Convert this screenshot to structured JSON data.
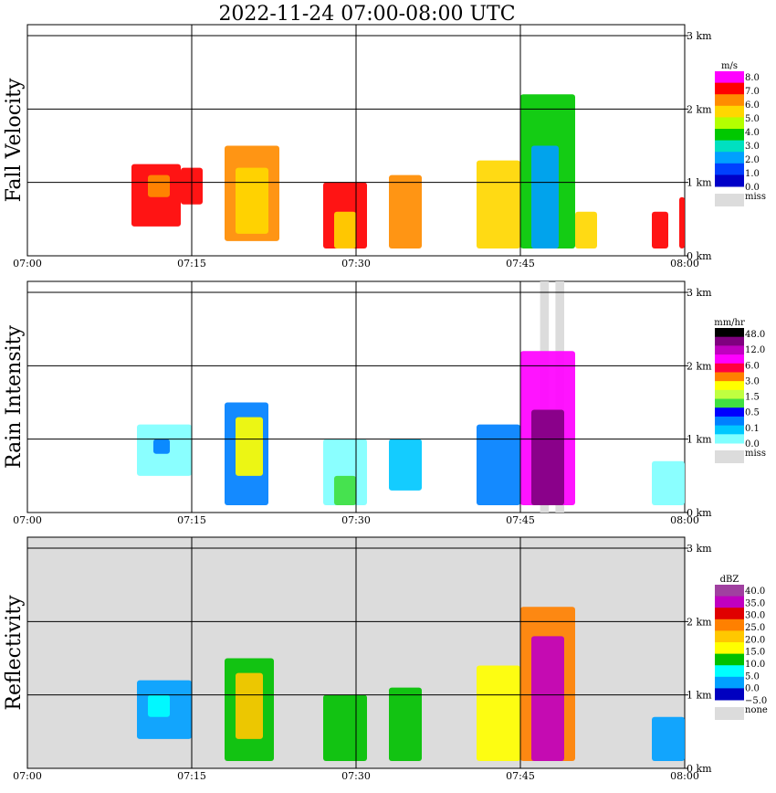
{
  "title": "2022-11-24   07:00-08:00 UTC",
  "colors": {
    "miss": "#dcdcdc",
    "grid": "#000000"
  },
  "chart_data": [
    {
      "type": "heatmap",
      "ylabel": "Fall Velocity",
      "xlim": [
        "07:00",
        "08:00"
      ],
      "ylim": [
        0,
        3
      ],
      "x_ticks": [
        "07:00",
        "07:15",
        "07:30",
        "07:45",
        "08:00"
      ],
      "y_ticks": [
        "0 km",
        "1 km",
        "2 km",
        "3 km"
      ],
      "background": "white",
      "legend": {
        "unit": "m/s",
        "labels": [
          "8.0",
          "7.0",
          "6.0",
          "5.0",
          "4.0",
          "3.0",
          "2.0",
          "1.0",
          "0.0"
        ],
        "colors": [
          "#ff00ff",
          "#ff0000",
          "#ff8c00",
          "#ffd700",
          "#b4ff00",
          "#00c800",
          "#00e0c0",
          "#00a0ff",
          "#0040ff",
          "#0000c8"
        ],
        "miss_label": "miss"
      },
      "cells": [
        {
          "t": [
            9.5,
            14
          ],
          "h": [
            0.4,
            1.25
          ],
          "level": 1
        },
        {
          "t": [
            11,
            13
          ],
          "h": [
            0.8,
            1.1
          ],
          "level": 2
        },
        {
          "t": [
            14,
            16
          ],
          "h": [
            0.7,
            1.2
          ],
          "level": 1
        },
        {
          "t": [
            18,
            23
          ],
          "h": [
            0.2,
            1.5
          ],
          "level": 2
        },
        {
          "t": [
            19,
            22
          ],
          "h": [
            0.3,
            1.2
          ],
          "level": 3
        },
        {
          "t": [
            27,
            31
          ],
          "h": [
            0.1,
            1.0
          ],
          "level": 1
        },
        {
          "t": [
            28,
            30
          ],
          "h": [
            0.1,
            0.6
          ],
          "level": 3
        },
        {
          "t": [
            33,
            36
          ],
          "h": [
            0.1,
            1.1
          ],
          "level": 2
        },
        {
          "t": [
            41,
            45
          ],
          "h": [
            0.1,
            1.3
          ],
          "level": 3
        },
        {
          "t": [
            45,
            50
          ],
          "h": [
            0.1,
            2.2
          ],
          "level": 5
        },
        {
          "t": [
            46,
            48.5
          ],
          "h": [
            0.1,
            1.5
          ],
          "level": 7
        },
        {
          "t": [
            50,
            52
          ],
          "h": [
            0.1,
            0.6
          ],
          "level": 3
        },
        {
          "t": [
            57,
            58.5
          ],
          "h": [
            0.1,
            0.6
          ],
          "level": 1
        },
        {
          "t": [
            59.5,
            60
          ],
          "h": [
            0.1,
            0.8
          ],
          "level": 1
        }
      ]
    },
    {
      "type": "heatmap",
      "ylabel": "Rain Intensity",
      "xlim": [
        "07:00",
        "08:00"
      ],
      "ylim": [
        0,
        3
      ],
      "x_ticks": [
        "07:00",
        "07:15",
        "07:30",
        "07:45",
        "08:00"
      ],
      "y_ticks": [
        "0 km",
        "1 km",
        "2 km",
        "3 km"
      ],
      "background": "white",
      "legend": {
        "unit": "mm/hr",
        "labels": [
          "48.0",
          "12.0",
          "6.0",
          "3.0",
          "1.5",
          "0.5",
          "0.1",
          "0.0"
        ],
        "colors": [
          "#000000",
          "#800080",
          "#c000c0",
          "#ff00ff",
          "#ff0040",
          "#ff8000",
          "#ffff00",
          "#c0ff40",
          "#40e040",
          "#0000ff",
          "#0080ff",
          "#00c8ff",
          "#80ffff"
        ],
        "miss_label": "miss"
      },
      "cells": [
        {
          "t": [
            10,
            15
          ],
          "h": [
            0.5,
            1.2
          ],
          "level": 12
        },
        {
          "t": [
            11.5,
            13
          ],
          "h": [
            0.8,
            1.0
          ],
          "level": 10
        },
        {
          "t": [
            18,
            22
          ],
          "h": [
            0.1,
            1.5
          ],
          "level": 10
        },
        {
          "t": [
            19,
            21.5
          ],
          "h": [
            0.5,
            1.3
          ],
          "level": 6
        },
        {
          "t": [
            27,
            31
          ],
          "h": [
            0.1,
            1.0
          ],
          "level": 12
        },
        {
          "t": [
            28,
            30
          ],
          "h": [
            0.1,
            0.5
          ],
          "level": 8
        },
        {
          "t": [
            33,
            36
          ],
          "h": [
            0.3,
            1.0
          ],
          "level": 11
        },
        {
          "t": [
            41,
            45
          ],
          "h": [
            0.1,
            1.2
          ],
          "level": 10
        },
        {
          "t": [
            45,
            50
          ],
          "h": [
            0.1,
            2.2
          ],
          "level": 3
        },
        {
          "t": [
            46,
            49
          ],
          "h": [
            0.1,
            1.4
          ],
          "level": 1
        },
        {
          "t": [
            57,
            60
          ],
          "h": [
            0.1,
            0.7
          ],
          "level": 12
        }
      ],
      "miss_columns": [
        [
          46.8,
          47.6
        ],
        [
          48.2,
          49.0
        ]
      ]
    },
    {
      "type": "heatmap",
      "ylabel": "Reflectivity",
      "xlim": [
        "07:00",
        "08:00"
      ],
      "ylim": [
        0,
        3
      ],
      "x_ticks": [
        "07:00",
        "07:15",
        "07:30",
        "07:45",
        "08:00"
      ],
      "y_ticks": [
        "0 km",
        "1 km",
        "2 km",
        "3 km"
      ],
      "background": "none",
      "legend": {
        "unit": "dBZ",
        "labels": [
          "40.0",
          "35.0",
          "30.0",
          "25.0",
          "20.0",
          "15.0",
          "10.0",
          "5.0",
          "0.0",
          "−5.0"
        ],
        "colors": [
          "#a040a0",
          "#c000c0",
          "#e00000",
          "#ff8000",
          "#ffc800",
          "#ffff00",
          "#00c000",
          "#00ffff",
          "#00a0ff",
          "#0000c0"
        ],
        "miss_label": "none"
      },
      "cells": [
        {
          "t": [
            10,
            15
          ],
          "h": [
            0.4,
            1.2
          ],
          "level": 8
        },
        {
          "t": [
            11,
            13
          ],
          "h": [
            0.7,
            1.0
          ],
          "level": 7
        },
        {
          "t": [
            18,
            22.5
          ],
          "h": [
            0.1,
            1.5
          ],
          "level": 6
        },
        {
          "t": [
            19,
            21.5
          ],
          "h": [
            0.4,
            1.3
          ],
          "level": 4
        },
        {
          "t": [
            27,
            31
          ],
          "h": [
            0.1,
            1.0
          ],
          "level": 6
        },
        {
          "t": [
            33,
            36
          ],
          "h": [
            0.1,
            1.1
          ],
          "level": 6
        },
        {
          "t": [
            41,
            45
          ],
          "h": [
            0.1,
            1.4
          ],
          "level": 5
        },
        {
          "t": [
            45,
            50
          ],
          "h": [
            0.1,
            2.2
          ],
          "level": 3
        },
        {
          "t": [
            46,
            49
          ],
          "h": [
            0.1,
            1.8
          ],
          "level": 1
        },
        {
          "t": [
            57,
            60
          ],
          "h": [
            0.1,
            0.7
          ],
          "level": 8
        }
      ]
    }
  ]
}
